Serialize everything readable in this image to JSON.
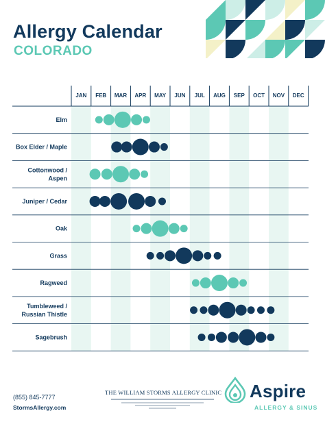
{
  "header": {
    "title": "Allergy Calendar",
    "subtitle": "COLORADO"
  },
  "colors": {
    "navy": "#12395c",
    "teal": "#5cc8b4",
    "pale_teal": "#e8f6f2",
    "pale_yellow": "#f4f1c8"
  },
  "chart_data": {
    "type": "table",
    "title": "Allergy Calendar",
    "months": [
      "JAN",
      "FEB",
      "MAR",
      "APR",
      "MAY",
      "JUN",
      "JUL",
      "AUG",
      "SEP",
      "OCT",
      "NOV",
      "DEC"
    ],
    "highlighted_month_columns": [
      "JAN",
      "MAR",
      "MAY",
      "JUL",
      "SEP",
      "NOV"
    ],
    "rows": [
      {
        "label": "Elm",
        "color": "teal",
        "dots": [
          {
            "x": 1.4,
            "size": 1
          },
          {
            "x": 1.9,
            "size": 2
          },
          {
            "x": 2.6,
            "size": 4
          },
          {
            "x": 3.3,
            "size": 2
          },
          {
            "x": 3.8,
            "size": 1
          }
        ]
      },
      {
        "label": "Box Elder / Maple",
        "color": "navy",
        "dots": [
          {
            "x": 2.3,
            "size": 2
          },
          {
            "x": 2.8,
            "size": 2
          },
          {
            "x": 3.5,
            "size": 4
          },
          {
            "x": 4.2,
            "size": 2
          },
          {
            "x": 4.7,
            "size": 1
          }
        ]
      },
      {
        "label": "Cottonwood / Aspen",
        "color": "teal",
        "dots": [
          {
            "x": 1.2,
            "size": 2
          },
          {
            "x": 1.8,
            "size": 2
          },
          {
            "x": 2.5,
            "size": 4
          },
          {
            "x": 3.2,
            "size": 2
          },
          {
            "x": 3.7,
            "size": 1
          }
        ]
      },
      {
        "label": "Juniper / Cedar",
        "color": "navy",
        "dots": [
          {
            "x": 1.2,
            "size": 2
          },
          {
            "x": 1.7,
            "size": 2
          },
          {
            "x": 2.4,
            "size": 4
          },
          {
            "x": 3.3,
            "size": 4
          },
          {
            "x": 4.0,
            "size": 2
          },
          {
            "x": 4.6,
            "size": 1
          }
        ]
      },
      {
        "label": "Oak",
        "color": "teal",
        "dots": [
          {
            "x": 3.3,
            "size": 1
          },
          {
            "x": 3.8,
            "size": 2
          },
          {
            "x": 4.5,
            "size": 4
          },
          {
            "x": 5.2,
            "size": 2
          },
          {
            "x": 5.7,
            "size": 1
          }
        ]
      },
      {
        "label": "Grass",
        "color": "navy",
        "dots": [
          {
            "x": 4.0,
            "size": 1
          },
          {
            "x": 4.5,
            "size": 1
          },
          {
            "x": 5.0,
            "size": 2
          },
          {
            "x": 5.7,
            "size": 4
          },
          {
            "x": 6.4,
            "size": 2
          },
          {
            "x": 6.9,
            "size": 1
          },
          {
            "x": 7.4,
            "size": 1
          }
        ]
      },
      {
        "label": "Ragweed",
        "color": "teal",
        "dots": [
          {
            "x": 6.3,
            "size": 1
          },
          {
            "x": 6.8,
            "size": 2
          },
          {
            "x": 7.5,
            "size": 4
          },
          {
            "x": 8.2,
            "size": 2
          },
          {
            "x": 8.7,
            "size": 1
          }
        ]
      },
      {
        "label": "Tumbleweed / Russian Thistle",
        "color": "navy",
        "dots": [
          {
            "x": 6.2,
            "size": 1
          },
          {
            "x": 6.7,
            "size": 1
          },
          {
            "x": 7.2,
            "size": 2
          },
          {
            "x": 7.9,
            "size": 4
          },
          {
            "x": 8.6,
            "size": 2
          },
          {
            "x": 9.1,
            "size": 1
          },
          {
            "x": 9.6,
            "size": 1
          },
          {
            "x": 10.1,
            "size": 1
          }
        ]
      },
      {
        "label": "Sagebrush",
        "color": "navy",
        "dots": [
          {
            "x": 6.6,
            "size": 1
          },
          {
            "x": 7.1,
            "size": 1
          },
          {
            "x": 7.6,
            "size": 2
          },
          {
            "x": 8.2,
            "size": 2
          },
          {
            "x": 8.9,
            "size": 4
          },
          {
            "x": 9.6,
            "size": 2
          },
          {
            "x": 10.1,
            "size": 1
          }
        ]
      }
    ]
  },
  "footer": {
    "phone": "(855) 845-7777",
    "website": "StormsAllergy.com",
    "clinic_name": "THE WILLIAM STORMS ALLERGY CLINIC",
    "brand_name": "Aspire",
    "brand_tagline": "ALLERGY & SINUS"
  }
}
